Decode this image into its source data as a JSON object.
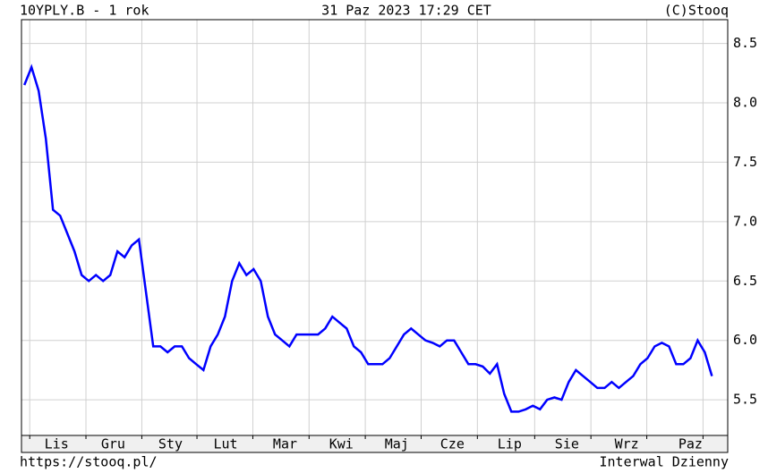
{
  "chart_data": {
    "type": "line",
    "title": "10YPLY.B - 1 rok",
    "subtitle": "31 Paz 2023 17:29 CET",
    "source": "(C)Stooq",
    "url": "https://stooq.pl/",
    "interval": "Interwal Dzienny",
    "series": [
      {
        "name": "10YPLY.B",
        "color": "#0000ff",
        "values": [
          8.15,
          8.3,
          8.1,
          7.7,
          7.1,
          7.05,
          6.9,
          6.75,
          6.55,
          6.5,
          6.55,
          6.5,
          6.55,
          6.75,
          6.7,
          6.8,
          6.85,
          6.4,
          5.95,
          5.95,
          5.9,
          5.95,
          5.95,
          5.85,
          5.8,
          5.75,
          5.95,
          6.05,
          6.2,
          6.5,
          6.65,
          6.55,
          6.6,
          6.5,
          6.2,
          6.05,
          6.0,
          5.95,
          6.05,
          6.05,
          6.05,
          6.05,
          6.1,
          6.2,
          6.15,
          6.1,
          5.95,
          5.9,
          5.8,
          5.8,
          5.8,
          5.85,
          5.95,
          6.05,
          6.1,
          6.05,
          6.0,
          5.98,
          5.95,
          6.0,
          6.0,
          5.9,
          5.8,
          5.8,
          5.78,
          5.72,
          5.8,
          5.55,
          5.4,
          5.4,
          5.42,
          5.45,
          5.42,
          5.5,
          5.52,
          5.5,
          5.65,
          5.75,
          5.7,
          5.65,
          5.6,
          5.6,
          5.65,
          5.6,
          5.65,
          5.7,
          5.8,
          5.85,
          5.95,
          5.98,
          5.95,
          5.8,
          5.8,
          5.85,
          6.0,
          5.9,
          5.7
        ]
      }
    ],
    "xlim": [
      -0.4,
      98.2
    ],
    "xticks": [
      {
        "value": 4.5,
        "label": "Lis"
      },
      {
        "value": 12.4,
        "label": "Gru"
      },
      {
        "value": 20.4,
        "label": "Sty"
      },
      {
        "value": 28.1,
        "label": "Lut"
      },
      {
        "value": 36.4,
        "label": "Mar"
      },
      {
        "value": 44.25,
        "label": "Kwi"
      },
      {
        "value": 52,
        "label": "Maj"
      },
      {
        "value": 59.75,
        "label": "Cze"
      },
      {
        "value": 67.75,
        "label": "Lip"
      },
      {
        "value": 75.75,
        "label": "Sie"
      },
      {
        "value": 84.1,
        "label": "Wrz"
      },
      {
        "value": 93,
        "label": "Paz"
      }
    ],
    "xgrid": [
      0.75,
      8.6,
      16.4,
      24.1,
      31.9,
      39.75,
      47.6,
      55.4,
      63.25,
      71.25,
      79.1,
      86.9,
      94.75
    ],
    "ylim": [
      5.2,
      8.7
    ],
    "yticks": [
      5.5,
      {
        "value": 6,
        "label": "6.0"
      },
      6.5,
      {
        "value": 7,
        "label": "7.0"
      },
      7.5,
      {
        "value": 8,
        "label": "8.0"
      },
      8.5
    ],
    "grid": true
  }
}
